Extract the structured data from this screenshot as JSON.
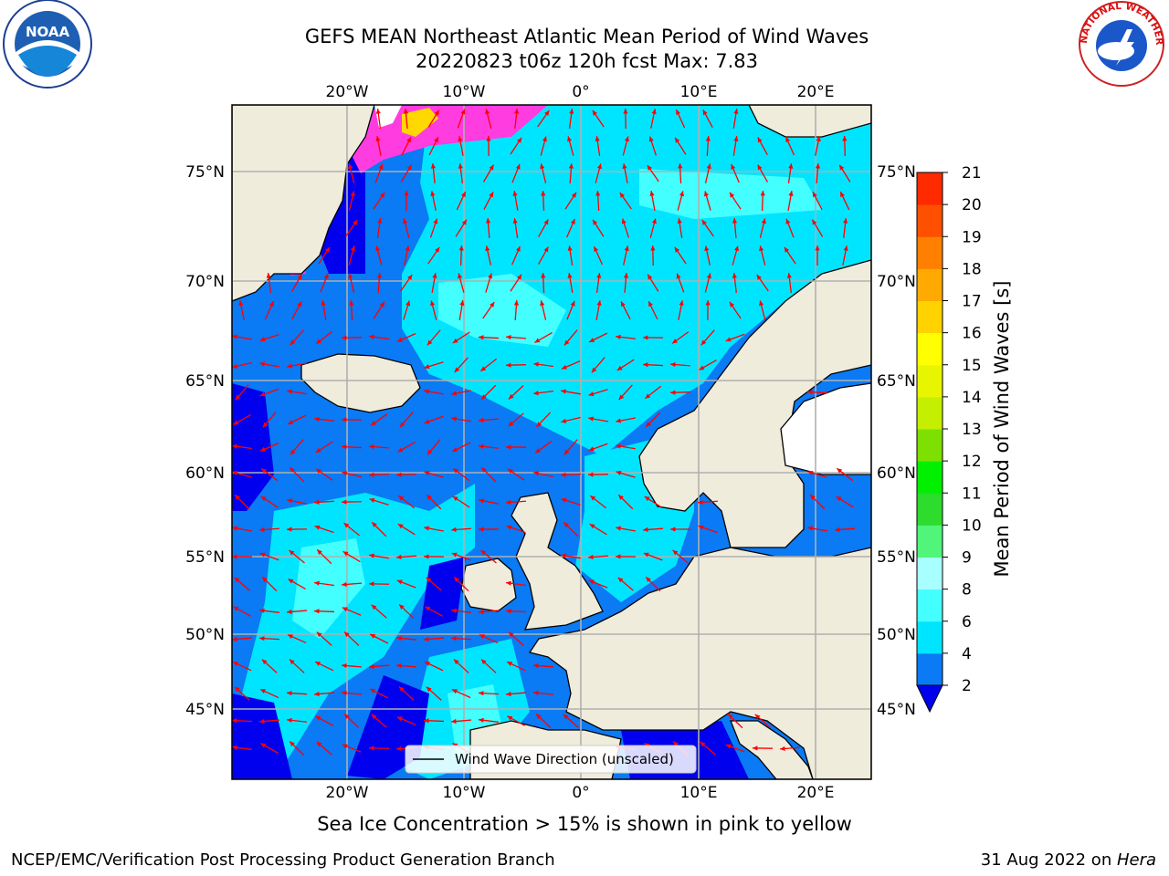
{
  "title_line1": "GEFS MEAN Northeast Atlantic Mean Period of Wind Waves",
  "title_line2": "20220823 t06z 120h fcst   Max: 7.83",
  "caption": "Sea Ice Concentration > 15% is shown in pink to yellow",
  "footer_left": "NCEP/EMC/Verification Post Processing Product Generation Branch",
  "footer_right_date": "31 Aug 2022 on ",
  "footer_right_host": "Hera",
  "logo_left_text": "NOAA",
  "logo_right_text": "NATIONAL WEATHER SERVICE",
  "legend_label": "Wind Wave Direction (unscaled)",
  "lon_labels": [
    "20°W",
    "10°W",
    "0°",
    "10°E",
    "20°E"
  ],
  "lat_labels": [
    "75°N",
    "70°N",
    "65°N",
    "60°N",
    "55°N",
    "50°N",
    "45°N"
  ],
  "colorbar": {
    "label": "Mean Period of Wind Waves [s]",
    "ticks": [
      "2",
      "4",
      "6",
      "8",
      "9",
      "10",
      "11",
      "12",
      "13",
      "14",
      "15",
      "16",
      "17",
      "18",
      "19",
      "20",
      "21"
    ],
    "colors": [
      "#0a7af5",
      "#00e5ff",
      "#44ffff",
      "#a8ffff",
      "#50f57a",
      "#2ddc2d",
      "#00f000",
      "#7ee000",
      "#c5ef00",
      "#e8f500",
      "#ffff00",
      "#ffd200",
      "#ffaa00",
      "#ff8000",
      "#ff5000",
      "#ff2a00"
    ],
    "under_color": "#0000ee"
  },
  "colors": {
    "land": "#efecdc",
    "ocean_low": "#0a7af5",
    "ocean_lowest": "#0000ee",
    "ocean_mid": "#00e5ff",
    "ocean_light": "#44ffff",
    "ice_pink": "#ff3ce0",
    "ice_yellow": "#ffd800",
    "arrow": "#ff0000",
    "grid": "#b0b0b0"
  }
}
